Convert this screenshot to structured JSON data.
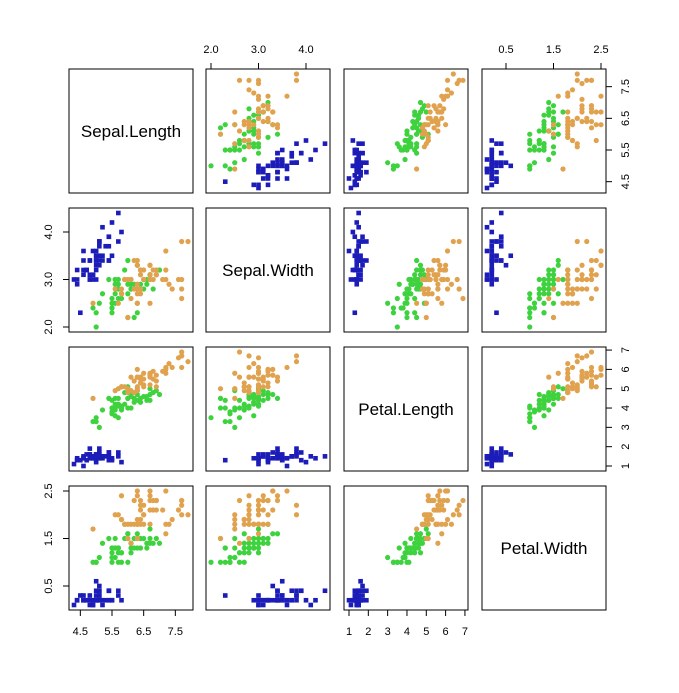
{
  "chart_data": {
    "type": "scatter",
    "variables": [
      "Sepal.Length",
      "Sepal.Width",
      "Petal.Length",
      "Petal.Width"
    ],
    "axes": {
      "Sepal.Length": {
        "range": [
          4.3,
          7.9
        ],
        "ticks": [
          4.5,
          5.5,
          6.5,
          7.5
        ]
      },
      "Sepal.Width": {
        "range": [
          2.0,
          4.4
        ],
        "ticks": [
          2.0,
          3.0,
          4.0
        ]
      },
      "Petal.Length": {
        "range": [
          1.0,
          6.9
        ],
        "ticks": [
          1,
          2,
          3,
          4,
          5,
          6,
          7
        ]
      },
      "Petal.Width": {
        "range": [
          0.1,
          2.5
        ],
        "ticks": [
          0.5,
          1.5,
          2.5
        ]
      }
    },
    "tick_labels": {
      "top": {
        "Sepal.Width": [
          "2.0",
          "3.0",
          "4.0"
        ],
        "Petal.Width": [
          "0.5",
          "1.5",
          "2.5"
        ]
      },
      "right": {
        "Sepal.Length": [
          "4.5",
          "5.5",
          "6.5",
          "7.5"
        ],
        "Petal.Length": [
          "1",
          "2",
          "3",
          "4",
          "5",
          "6",
          "7"
        ]
      },
      "left": {
        "Sepal.Width": [
          "2.0",
          "3.0",
          "4.0"
        ],
        "Petal.Width": [
          "0.5",
          "1.5",
          "2.5"
        ]
      },
      "bottom": {
        "Sepal.Length": [
          "4.5",
          "5.5",
          "6.5",
          "7.5"
        ],
        "Petal.Length": [
          "1",
          "2",
          "3",
          "4",
          "5",
          "6",
          "7"
        ]
      }
    },
    "series": [
      {
        "color": "#1c1cb8",
        "marker": "square",
        "points": [
          [
            5.1,
            3.5,
            1.4,
            0.2
          ],
          [
            4.9,
            3.0,
            1.4,
            0.2
          ],
          [
            4.7,
            3.2,
            1.3,
            0.2
          ],
          [
            4.6,
            3.1,
            1.5,
            0.2
          ],
          [
            5.0,
            3.6,
            1.4,
            0.2
          ],
          [
            5.4,
            3.9,
            1.7,
            0.4
          ],
          [
            4.6,
            3.4,
            1.4,
            0.3
          ],
          [
            5.0,
            3.4,
            1.5,
            0.2
          ],
          [
            4.4,
            2.9,
            1.4,
            0.2
          ],
          [
            4.9,
            3.1,
            1.5,
            0.1
          ],
          [
            5.4,
            3.7,
            1.5,
            0.2
          ],
          [
            4.8,
            3.4,
            1.6,
            0.2
          ],
          [
            4.8,
            3.0,
            1.4,
            0.1
          ],
          [
            4.3,
            3.0,
            1.1,
            0.1
          ],
          [
            5.8,
            4.0,
            1.2,
            0.2
          ],
          [
            5.7,
            4.4,
            1.5,
            0.4
          ],
          [
            5.4,
            3.9,
            1.3,
            0.4
          ],
          [
            5.1,
            3.5,
            1.4,
            0.3
          ],
          [
            5.7,
            3.8,
            1.7,
            0.3
          ],
          [
            5.1,
            3.8,
            1.5,
            0.3
          ],
          [
            5.4,
            3.4,
            1.7,
            0.2
          ],
          [
            5.1,
            3.7,
            1.5,
            0.4
          ],
          [
            4.6,
            3.6,
            1.0,
            0.2
          ],
          [
            5.1,
            3.3,
            1.7,
            0.5
          ],
          [
            4.8,
            3.4,
            1.9,
            0.2
          ],
          [
            5.0,
            3.0,
            1.6,
            0.2
          ],
          [
            5.0,
            3.4,
            1.6,
            0.4
          ],
          [
            5.2,
            3.5,
            1.5,
            0.2
          ],
          [
            5.2,
            3.4,
            1.4,
            0.2
          ],
          [
            4.7,
            3.2,
            1.6,
            0.2
          ],
          [
            4.8,
            3.1,
            1.6,
            0.2
          ],
          [
            5.4,
            3.4,
            1.5,
            0.4
          ],
          [
            5.2,
            4.1,
            1.5,
            0.1
          ],
          [
            5.5,
            4.2,
            1.4,
            0.2
          ],
          [
            4.9,
            3.1,
            1.5,
            0.2
          ],
          [
            5.0,
            3.2,
            1.2,
            0.2
          ],
          [
            5.5,
            3.5,
            1.3,
            0.2
          ],
          [
            4.9,
            3.6,
            1.4,
            0.1
          ],
          [
            4.4,
            3.0,
            1.3,
            0.2
          ],
          [
            5.1,
            3.4,
            1.5,
            0.2
          ],
          [
            5.0,
            3.5,
            1.3,
            0.3
          ],
          [
            4.5,
            2.3,
            1.3,
            0.3
          ],
          [
            4.4,
            3.2,
            1.3,
            0.2
          ],
          [
            5.0,
            3.5,
            1.6,
            0.6
          ],
          [
            5.1,
            3.8,
            1.9,
            0.4
          ],
          [
            4.8,
            3.0,
            1.4,
            0.3
          ],
          [
            5.1,
            3.8,
            1.6,
            0.2
          ],
          [
            4.6,
            3.2,
            1.4,
            0.2
          ],
          [
            5.3,
            3.7,
            1.5,
            0.2
          ],
          [
            5.0,
            3.3,
            1.4,
            0.2
          ]
        ]
      },
      {
        "color": "#3fd23f",
        "marker": "circle",
        "points": [
          [
            7.0,
            3.2,
            4.7,
            1.4
          ],
          [
            6.4,
            3.2,
            4.5,
            1.5
          ],
          [
            6.9,
            3.1,
            4.9,
            1.5
          ],
          [
            5.5,
            2.3,
            4.0,
            1.3
          ],
          [
            6.5,
            2.8,
            4.6,
            1.5
          ],
          [
            5.7,
            2.8,
            4.5,
            1.3
          ],
          [
            6.3,
            3.3,
            4.7,
            1.6
          ],
          [
            4.9,
            2.4,
            3.3,
            1.0
          ],
          [
            6.6,
            2.9,
            4.6,
            1.3
          ],
          [
            5.2,
            2.7,
            3.9,
            1.4
          ],
          [
            5.0,
            2.0,
            3.5,
            1.0
          ],
          [
            5.9,
            3.0,
            4.2,
            1.5
          ],
          [
            6.0,
            2.2,
            4.0,
            1.0
          ],
          [
            6.1,
            2.9,
            4.7,
            1.4
          ],
          [
            5.6,
            2.9,
            3.6,
            1.3
          ],
          [
            6.7,
            3.1,
            4.4,
            1.4
          ],
          [
            5.6,
            3.0,
            4.5,
            1.5
          ],
          [
            5.8,
            2.7,
            4.1,
            1.0
          ],
          [
            6.2,
            2.2,
            4.5,
            1.5
          ],
          [
            5.6,
            2.5,
            3.9,
            1.1
          ],
          [
            5.9,
            3.2,
            4.8,
            1.8
          ],
          [
            6.1,
            2.8,
            4.0,
            1.3
          ],
          [
            6.3,
            2.5,
            4.9,
            1.5
          ],
          [
            6.1,
            2.8,
            4.7,
            1.2
          ],
          [
            6.4,
            2.9,
            4.3,
            1.3
          ],
          [
            6.6,
            3.0,
            4.4,
            1.4
          ],
          [
            6.8,
            2.8,
            4.8,
            1.4
          ],
          [
            6.7,
            3.0,
            5.0,
            1.7
          ],
          [
            6.0,
            2.9,
            4.5,
            1.5
          ],
          [
            5.7,
            2.6,
            3.5,
            1.0
          ],
          [
            5.5,
            2.4,
            3.8,
            1.1
          ],
          [
            5.5,
            2.4,
            3.7,
            1.0
          ],
          [
            5.8,
            2.7,
            3.9,
            1.2
          ],
          [
            6.0,
            2.7,
            5.1,
            1.6
          ],
          [
            5.4,
            3.0,
            4.5,
            1.5
          ],
          [
            6.0,
            3.4,
            4.5,
            1.6
          ],
          [
            6.7,
            3.1,
            4.7,
            1.5
          ],
          [
            6.3,
            2.3,
            4.4,
            1.3
          ],
          [
            5.6,
            3.0,
            4.1,
            1.3
          ],
          [
            5.5,
            2.5,
            4.0,
            1.3
          ],
          [
            5.5,
            2.6,
            4.4,
            1.2
          ],
          [
            6.1,
            3.0,
            4.6,
            1.4
          ],
          [
            5.8,
            2.6,
            4.0,
            1.2
          ],
          [
            5.0,
            2.3,
            3.3,
            1.0
          ],
          [
            5.6,
            2.7,
            4.2,
            1.3
          ],
          [
            5.7,
            3.0,
            4.2,
            1.2
          ],
          [
            5.7,
            2.9,
            4.2,
            1.3
          ],
          [
            6.2,
            2.9,
            4.3,
            1.3
          ],
          [
            5.1,
            2.5,
            3.0,
            1.1
          ],
          [
            5.7,
            2.8,
            4.1,
            1.3
          ]
        ]
      },
      {
        "color": "#e0a24e",
        "marker": "circle",
        "points": [
          [
            6.3,
            3.3,
            6.0,
            2.5
          ],
          [
            5.8,
            2.7,
            5.1,
            1.9
          ],
          [
            7.1,
            3.0,
            5.9,
            2.1
          ],
          [
            6.3,
            2.9,
            5.6,
            1.8
          ],
          [
            6.5,
            3.0,
            5.8,
            2.2
          ],
          [
            7.6,
            3.0,
            6.6,
            2.1
          ],
          [
            4.9,
            2.5,
            4.5,
            1.7
          ],
          [
            7.3,
            2.9,
            6.3,
            1.8
          ],
          [
            6.7,
            2.5,
            5.8,
            1.8
          ],
          [
            7.2,
            3.6,
            6.1,
            2.5
          ],
          [
            6.5,
            3.2,
            5.1,
            2.0
          ],
          [
            6.4,
            2.7,
            5.3,
            1.9
          ],
          [
            6.8,
            3.0,
            5.5,
            2.1
          ],
          [
            5.7,
            2.5,
            5.0,
            2.0
          ],
          [
            5.8,
            2.8,
            5.1,
            2.4
          ],
          [
            6.4,
            3.2,
            5.3,
            2.3
          ],
          [
            6.5,
            3.0,
            5.5,
            1.8
          ],
          [
            7.7,
            3.8,
            6.7,
            2.2
          ],
          [
            7.7,
            2.6,
            6.9,
            2.3
          ],
          [
            6.0,
            2.2,
            5.0,
            1.5
          ],
          [
            6.9,
            3.2,
            5.7,
            2.3
          ],
          [
            5.6,
            2.8,
            4.9,
            2.0
          ],
          [
            7.7,
            2.8,
            6.7,
            2.0
          ],
          [
            6.3,
            2.7,
            4.9,
            1.8
          ],
          [
            6.7,
            3.3,
            5.7,
            2.1
          ],
          [
            7.2,
            3.2,
            6.0,
            1.8
          ],
          [
            6.2,
            2.8,
            4.8,
            1.8
          ],
          [
            6.1,
            3.0,
            4.9,
            1.8
          ],
          [
            6.4,
            2.8,
            5.6,
            2.1
          ],
          [
            7.2,
            3.0,
            5.8,
            1.6
          ],
          [
            7.4,
            2.8,
            6.1,
            1.9
          ],
          [
            7.9,
            3.8,
            6.4,
            2.0
          ],
          [
            6.4,
            2.8,
            5.6,
            2.2
          ],
          [
            6.3,
            2.8,
            5.1,
            1.5
          ],
          [
            6.1,
            2.6,
            5.6,
            1.4
          ],
          [
            7.7,
            3.0,
            6.1,
            2.3
          ],
          [
            6.3,
            3.4,
            5.6,
            2.4
          ],
          [
            6.4,
            3.1,
            5.5,
            1.8
          ],
          [
            6.0,
            3.0,
            4.8,
            1.8
          ],
          [
            6.9,
            3.1,
            5.4,
            2.1
          ],
          [
            6.7,
            3.1,
            5.6,
            2.4
          ],
          [
            6.9,
            3.1,
            5.1,
            2.3
          ],
          [
            5.8,
            2.7,
            5.1,
            1.9
          ],
          [
            6.8,
            3.2,
            5.9,
            2.3
          ],
          [
            6.7,
            3.3,
            5.7,
            2.5
          ],
          [
            6.7,
            3.0,
            5.2,
            2.3
          ],
          [
            6.3,
            2.5,
            5.0,
            1.9
          ],
          [
            6.5,
            3.0,
            5.2,
            2.0
          ],
          [
            6.2,
            3.4,
            5.4,
            2.3
          ],
          [
            5.9,
            3.0,
            5.1,
            1.8
          ]
        ]
      }
    ]
  }
}
